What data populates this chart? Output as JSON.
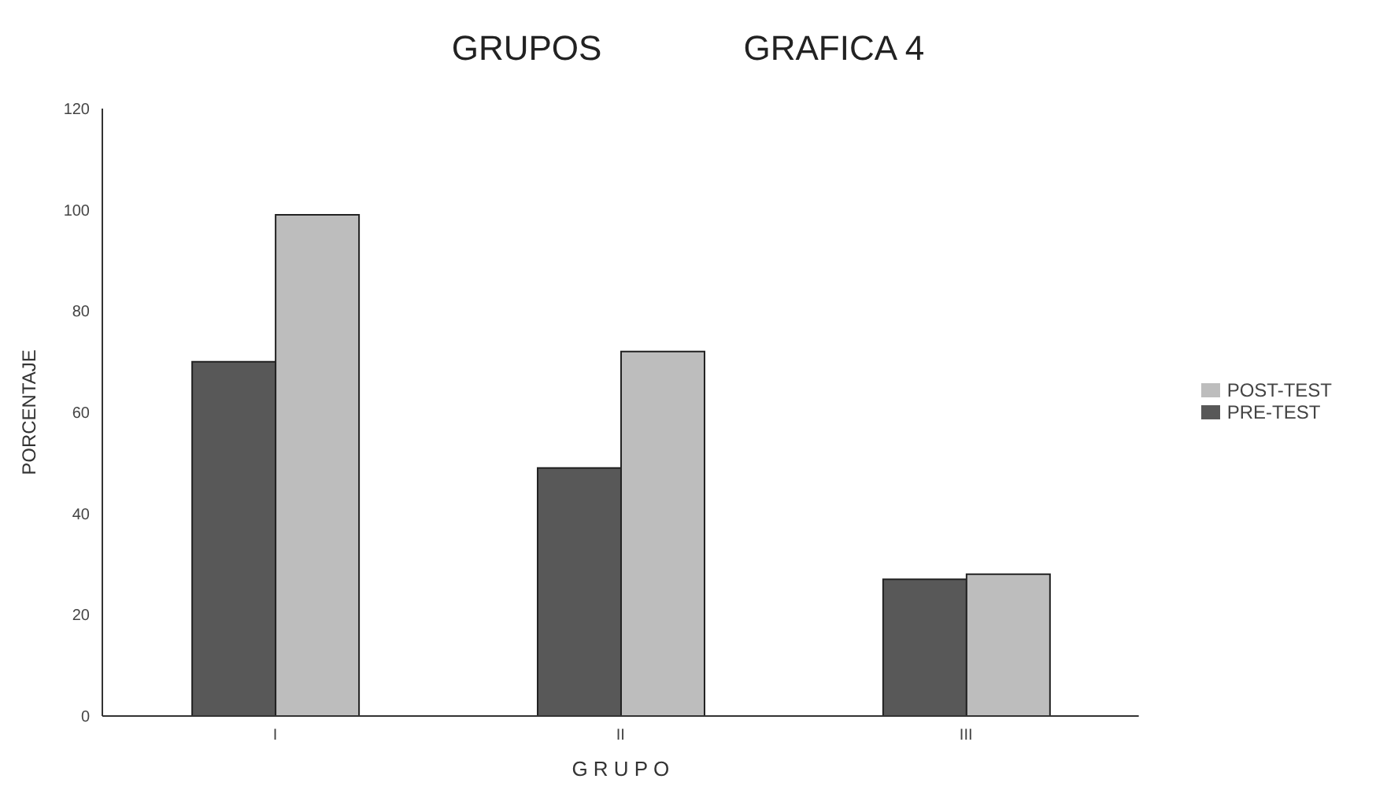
{
  "chart_data": {
    "type": "bar",
    "title": "GRUPOS",
    "subtitle": "GRAFICA 4",
    "xlabel": "G R U P O",
    "ylabel": "PORCENTAJE",
    "categories": [
      "I",
      "II",
      "III"
    ],
    "series": [
      {
        "name": "PRE-TEST",
        "color": "#585858",
        "values": [
          70,
          49,
          27
        ]
      },
      {
        "name": "POST-TEST",
        "color": "#bdbdbd",
        "values": [
          99,
          72,
          28
        ]
      }
    ],
    "ylim": [
      0,
      120
    ],
    "yticks": [
      0,
      20,
      40,
      60,
      80,
      100,
      120
    ],
    "grid": false,
    "legend": "right"
  }
}
